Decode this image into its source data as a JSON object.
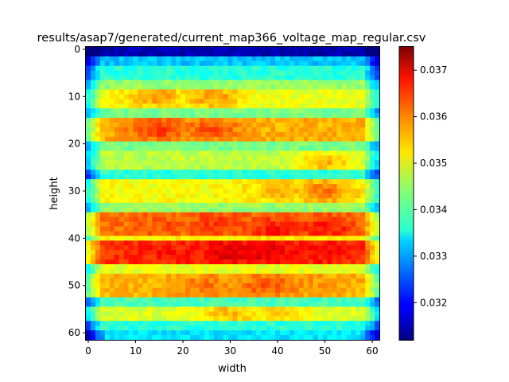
{
  "chart_data": {
    "type": "heatmap",
    "title": "results/asap7/generated/current_map366_voltage_map_regular.csv",
    "xlabel": "width",
    "ylabel": "height",
    "grid": false,
    "colormap": "jet",
    "n_cols": 62,
    "n_rows": 62,
    "x_ticks": [
      0,
      10,
      20,
      30,
      40,
      50,
      60
    ],
    "y_ticks": [
      0,
      10,
      20,
      30,
      40,
      50,
      60
    ],
    "y_axis_inverted": true,
    "value_range": [
      0.0312,
      0.0375
    ],
    "colorbar": {
      "ticks": [
        0.032,
        0.033,
        0.034,
        0.035,
        0.036,
        0.037
      ],
      "tick_labels": [
        "0.032",
        "0.033",
        "0.034",
        "0.035",
        "0.036",
        "0.037"
      ]
    },
    "horizontal_bands": [
      {
        "row_start": 0,
        "row_end": 1,
        "level": 0.0315
      },
      {
        "row_start": 2,
        "row_end": 3,
        "level": 0.0332
      },
      {
        "row_start": 4,
        "row_end": 6,
        "level": 0.0338
      },
      {
        "row_start": 7,
        "row_end": 8,
        "level": 0.0345
      },
      {
        "row_start": 9,
        "row_end": 12,
        "level": 0.0356
      },
      {
        "row_start": 13,
        "row_end": 14,
        "level": 0.0343
      },
      {
        "row_start": 15,
        "row_end": 19,
        "level": 0.0362
      },
      {
        "row_start": 20,
        "row_end": 21,
        "level": 0.0343
      },
      {
        "row_start": 22,
        "row_end": 25,
        "level": 0.0353
      },
      {
        "row_start": 26,
        "row_end": 27,
        "level": 0.0338
      },
      {
        "row_start": 28,
        "row_end": 32,
        "level": 0.0357
      },
      {
        "row_start": 33,
        "row_end": 34,
        "level": 0.0345
      },
      {
        "row_start": 35,
        "row_end": 39,
        "level": 0.0366
      },
      {
        "row_start": 40,
        "row_end": 40,
        "level": 0.0352
      },
      {
        "row_start": 41,
        "row_end": 45,
        "level": 0.037
      },
      {
        "row_start": 46,
        "row_end": 47,
        "level": 0.035
      },
      {
        "row_start": 48,
        "row_end": 52,
        "level": 0.0362
      },
      {
        "row_start": 53,
        "row_end": 54,
        "level": 0.034
      },
      {
        "row_start": 55,
        "row_end": 57,
        "level": 0.0355
      },
      {
        "row_start": 58,
        "row_end": 59,
        "level": 0.0338
      },
      {
        "row_start": 60,
        "row_end": 61,
        "level": 0.0334
      }
    ],
    "hotspots": [
      {
        "x": 14,
        "y": 10,
        "value": 0.0364
      },
      {
        "x": 26,
        "y": 10,
        "value": 0.0364
      },
      {
        "x": 15,
        "y": 17,
        "value": 0.037
      },
      {
        "x": 26,
        "y": 17,
        "value": 0.0368
      },
      {
        "x": 38,
        "y": 17,
        "value": 0.0358
      },
      {
        "x": 50,
        "y": 17,
        "value": 0.036
      },
      {
        "x": 50,
        "y": 24,
        "value": 0.0362
      },
      {
        "x": 14,
        "y": 24,
        "value": 0.0352
      },
      {
        "x": 40,
        "y": 30,
        "value": 0.0362
      },
      {
        "x": 50,
        "y": 30,
        "value": 0.0366
      },
      {
        "x": 27,
        "y": 30,
        "value": 0.0356
      },
      {
        "x": 16,
        "y": 37,
        "value": 0.0368
      },
      {
        "x": 28,
        "y": 37,
        "value": 0.037
      },
      {
        "x": 40,
        "y": 38,
        "value": 0.0372
      },
      {
        "x": 50,
        "y": 38,
        "value": 0.0372
      },
      {
        "x": 18,
        "y": 43,
        "value": 0.0372
      },
      {
        "x": 30,
        "y": 43,
        "value": 0.0375
      },
      {
        "x": 38,
        "y": 43,
        "value": 0.0375
      },
      {
        "x": 50,
        "y": 43,
        "value": 0.0373
      },
      {
        "x": 25,
        "y": 50,
        "value": 0.0366
      },
      {
        "x": 38,
        "y": 50,
        "value": 0.0368
      },
      {
        "x": 48,
        "y": 50,
        "value": 0.0364
      },
      {
        "x": 30,
        "y": 56,
        "value": 0.0362
      },
      {
        "x": 40,
        "y": 56,
        "value": 0.036
      }
    ]
  }
}
